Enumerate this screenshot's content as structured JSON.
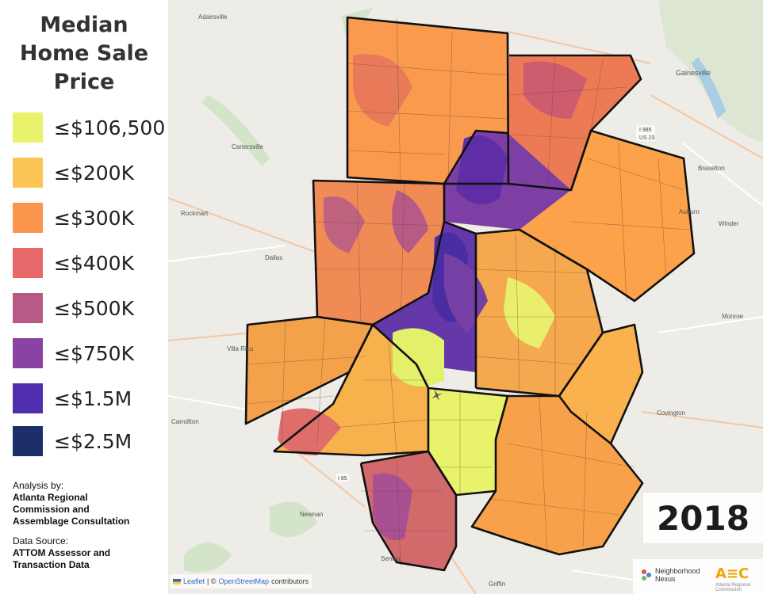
{
  "legend": {
    "title_lines": [
      "Median",
      "Home Sale",
      "Price"
    ],
    "items": [
      {
        "label": "≤$106,500",
        "color": "#e8f26a"
      },
      {
        "label": "≤$200K",
        "color": "#fcc455"
      },
      {
        "label": "≤$300K",
        "color": "#fb944c"
      },
      {
        "label": "≤$400K",
        "color": "#e76868"
      },
      {
        "label": "≤$500K",
        "color": "#b85a86"
      },
      {
        "label": "≤$750K",
        "color": "#8a43a3"
      },
      {
        "label": "≤$1.5M",
        "color": "#4f2fad"
      },
      {
        "label": "≤$2.5M",
        "color": "#1c2f69"
      }
    ]
  },
  "credits": {
    "analysis_heading": "Analysis by:",
    "analysis_org_lines": [
      "Atlanta Regional",
      "Commission and",
      "Assemblage Consultation"
    ],
    "source_heading": "Data Source:",
    "source_lines": [
      "ATTOM Assessor and",
      "Transaction Data"
    ]
  },
  "map": {
    "year": "2018",
    "place_labels": [
      "Adairsville",
      "Cartersville",
      "Gainesville",
      "Braselton",
      "Auburn",
      "Winder",
      "Rockmart",
      "Dallas",
      "Monroe",
      "Villa Rica",
      "Carrollton",
      "Covington",
      "Newnan",
      "Senoia",
      "Griffin"
    ],
    "road_labels": [
      "I 985",
      "US 23",
      "I 85"
    ],
    "attribution": {
      "leaflet": "Leaflet",
      "separator": " | © ",
      "osm": "OpenStreetMap",
      "contributors": " contributors"
    },
    "logos": {
      "nn_line1": "Neighborhood",
      "nn_line2": "Nexus",
      "arc": "A≡C",
      "arc_sub": "Atlanta Regional Commission"
    }
  }
}
